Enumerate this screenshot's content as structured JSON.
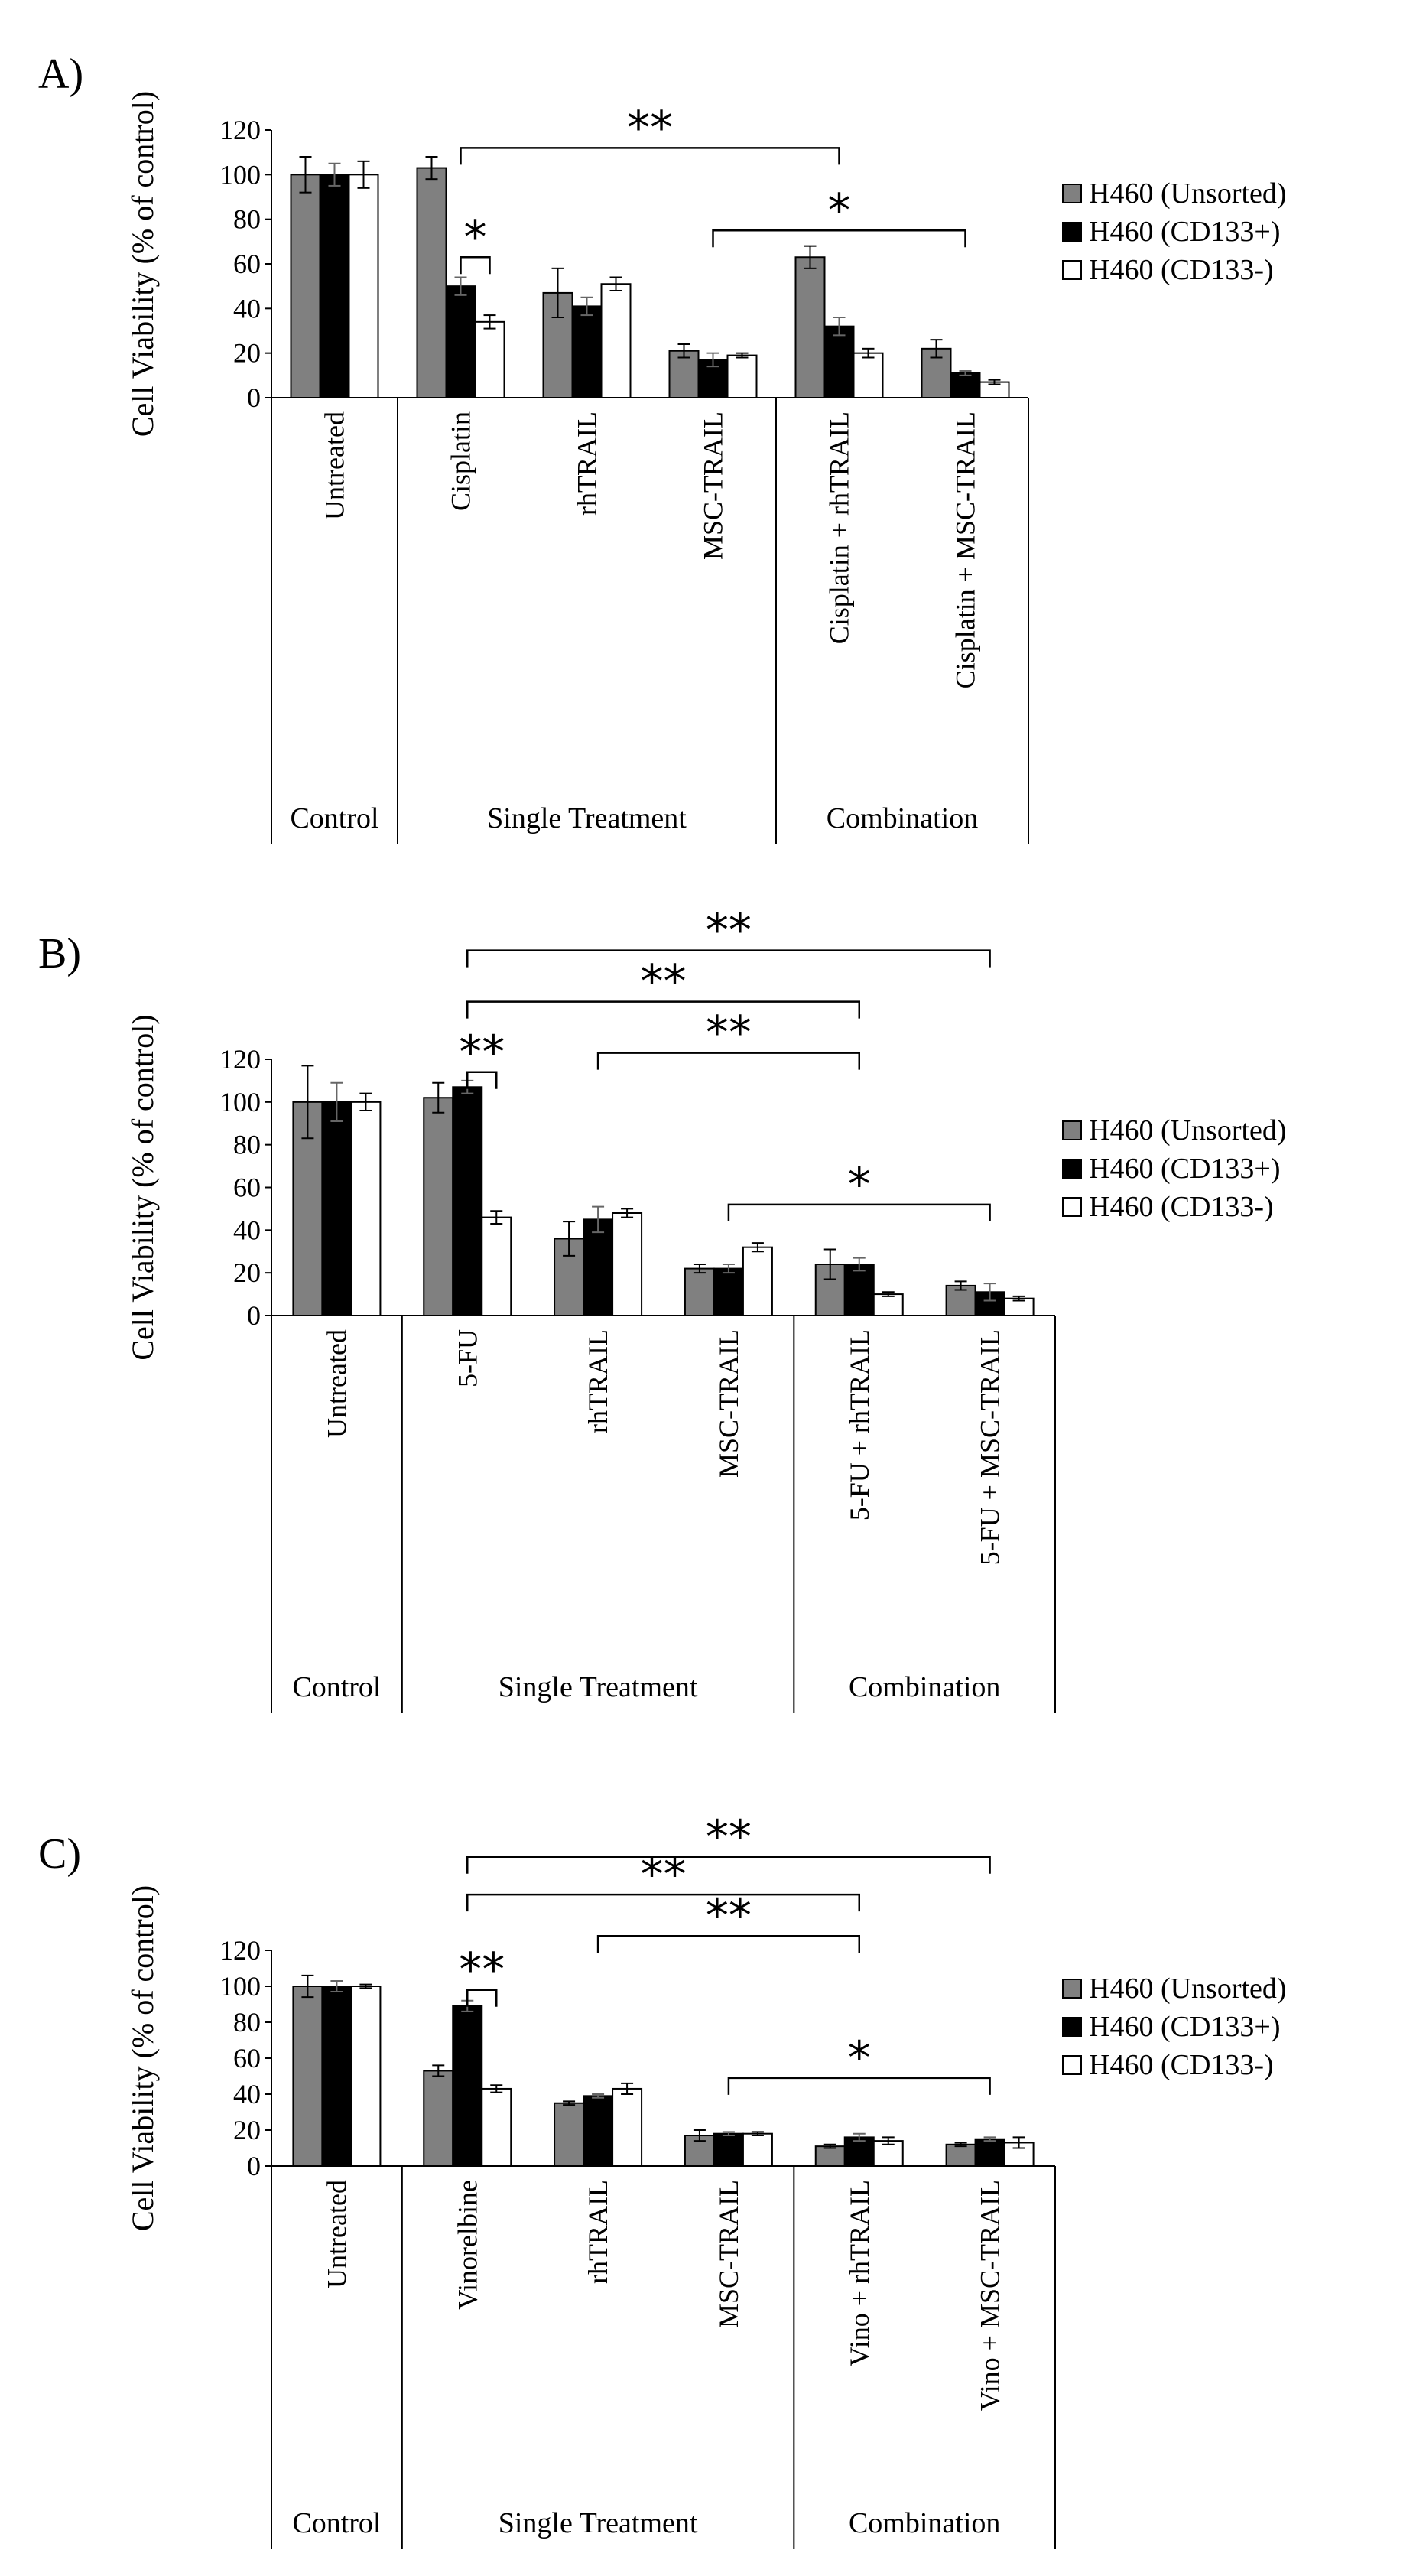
{
  "colors": {
    "unsorted": "#808080",
    "cd133pos": "#000000",
    "cd133neg": "#ffffff",
    "line": "#000000"
  },
  "chart_data": [
    {
      "type": "bar",
      "panel_label": "A)",
      "ylabel": "Cell Viability (% of control)",
      "ylim": [
        0,
        120
      ],
      "yticks": [
        0,
        20,
        40,
        60,
        80,
        100,
        120
      ],
      "categories": [
        "Untreated",
        "Cisplatin",
        "rhTRAIL",
        "MSC-TRAIL",
        "Cisplatin + rhTRAIL",
        "Cisplatin + MSC-TRAIL"
      ],
      "groups": [
        {
          "label": "Control",
          "from": 0,
          "to": 0
        },
        {
          "label": "Single Treatment",
          "from": 1,
          "to": 3
        },
        {
          "label": "Combination",
          "from": 4,
          "to": 5
        }
      ],
      "series": [
        {
          "name": "H460 (Unsorted)",
          "color_key": "unsorted",
          "values": [
            100,
            103,
            47,
            21,
            63,
            22
          ],
          "errors": [
            8,
            5,
            11,
            3,
            5,
            4
          ]
        },
        {
          "name": "H460 (CD133+)",
          "color_key": "cd133pos",
          "values": [
            100,
            50,
            41,
            17,
            32,
            11
          ],
          "errors": [
            5,
            4,
            4,
            3,
            4,
            1
          ]
        },
        {
          "name": "H460 (CD133-)",
          "color_key": "cd133neg",
          "values": [
            100,
            34,
            51,
            19,
            20,
            7
          ],
          "errors": [
            6,
            3,
            3,
            1,
            2,
            1
          ]
        }
      ],
      "annotations": [
        {
          "text": "**",
          "from_cat": 1,
          "from_series": 1,
          "to_cat": 4,
          "to_series": 1,
          "level": 112
        },
        {
          "text": "*",
          "from_cat": 3,
          "from_series": 1,
          "to_cat": 5,
          "to_series": 1,
          "level": 75
        },
        {
          "text": "*",
          "from_cat": 1,
          "from_series": 1,
          "to_cat": 1,
          "to_series": 2,
          "level": 63
        }
      ]
    },
    {
      "type": "bar",
      "panel_label": "B)",
      "ylabel": "Cell Viability (% of control)",
      "ylim": [
        0,
        120
      ],
      "yticks": [
        0,
        20,
        40,
        60,
        80,
        100,
        120
      ],
      "categories": [
        "Untreated",
        "5-FU",
        "rhTRAIL",
        "MSC-TRAIL",
        "5-FU + rhTRAIL",
        "5-FU + MSC-TRAIL"
      ],
      "groups": [
        {
          "label": "Control",
          "from": 0,
          "to": 0
        },
        {
          "label": "Single Treatment",
          "from": 1,
          "to": 3
        },
        {
          "label": "Combination",
          "from": 4,
          "to": 5
        }
      ],
      "series": [
        {
          "name": "H460 (Unsorted)",
          "color_key": "unsorted",
          "values": [
            100,
            102,
            36,
            22,
            24,
            14
          ],
          "errors": [
            17,
            7,
            8,
            2,
            7,
            2
          ]
        },
        {
          "name": "H460 (CD133+)",
          "color_key": "cd133pos",
          "values": [
            100,
            107,
            45,
            22,
            24,
            11
          ],
          "errors": [
            9,
            3,
            6,
            2,
            3,
            4
          ]
        },
        {
          "name": "H460 (CD133-)",
          "color_key": "cd133neg",
          "values": [
            100,
            46,
            48,
            32,
            10,
            8
          ],
          "errors": [
            4,
            3,
            2,
            2,
            1,
            1
          ]
        }
      ],
      "annotations": [
        {
          "text": "**",
          "from_cat": 1,
          "from_series": 1,
          "to_cat": 5,
          "to_series": 1,
          "level": 171
        },
        {
          "text": "**",
          "from_cat": 1,
          "from_series": 1,
          "to_cat": 4,
          "to_series": 1,
          "level": 147
        },
        {
          "text": "**",
          "from_cat": 2,
          "from_series": 1,
          "to_cat": 4,
          "to_series": 1,
          "level": 123
        },
        {
          "text": "**",
          "from_cat": 1,
          "from_series": 1,
          "to_cat": 1,
          "to_series": 2,
          "level": 114
        },
        {
          "text": "*",
          "from_cat": 3,
          "from_series": 1,
          "to_cat": 5,
          "to_series": 1,
          "level": 52
        }
      ]
    },
    {
      "type": "bar",
      "panel_label": "C)",
      "ylabel": "Cell Viability (% of control)",
      "ylim": [
        0,
        120
      ],
      "yticks": [
        0,
        20,
        40,
        60,
        80,
        100,
        120
      ],
      "categories": [
        "Untreated",
        "Vinorelbine",
        "rhTRAIL",
        "MSC-TRAIL",
        "Vino + rhTRAIL",
        "Vino + MSC-TRAIL"
      ],
      "groups": [
        {
          "label": "Control",
          "from": 0,
          "to": 0
        },
        {
          "label": "Single Treatment",
          "from": 1,
          "to": 3
        },
        {
          "label": "Combination",
          "from": 4,
          "to": 5
        }
      ],
      "series": [
        {
          "name": "H460 (Unsorted)",
          "color_key": "unsorted",
          "values": [
            100,
            53,
            35,
            17,
            11,
            12
          ],
          "errors": [
            6,
            3,
            1,
            3,
            1,
            1
          ]
        },
        {
          "name": "H460 (CD133+)",
          "color_key": "cd133pos",
          "values": [
            100,
            89,
            39,
            18,
            16,
            15
          ],
          "errors": [
            3,
            3,
            1,
            1,
            2,
            1
          ]
        },
        {
          "name": "H460 (CD133-)",
          "color_key": "cd133neg",
          "values": [
            100,
            43,
            43,
            18,
            14,
            13
          ],
          "errors": [
            1,
            2,
            3,
            1,
            2,
            3
          ]
        }
      ],
      "annotations": [
        {
          "text": "**",
          "from_cat": 1,
          "from_series": 1,
          "to_cat": 5,
          "to_series": 1,
          "level": 172
        },
        {
          "text": "**",
          "from_cat": 1,
          "from_series": 1,
          "to_cat": 4,
          "to_series": 1,
          "level": 151
        },
        {
          "text": "**",
          "from_cat": 2,
          "from_series": 1,
          "to_cat": 4,
          "to_series": 1,
          "level": 128
        },
        {
          "text": "**",
          "from_cat": 1,
          "from_series": 1,
          "to_cat": 1,
          "to_series": 2,
          "level": 98
        },
        {
          "text": "*",
          "from_cat": 3,
          "from_series": 1,
          "to_cat": 5,
          "to_series": 1,
          "level": 49
        }
      ]
    }
  ]
}
